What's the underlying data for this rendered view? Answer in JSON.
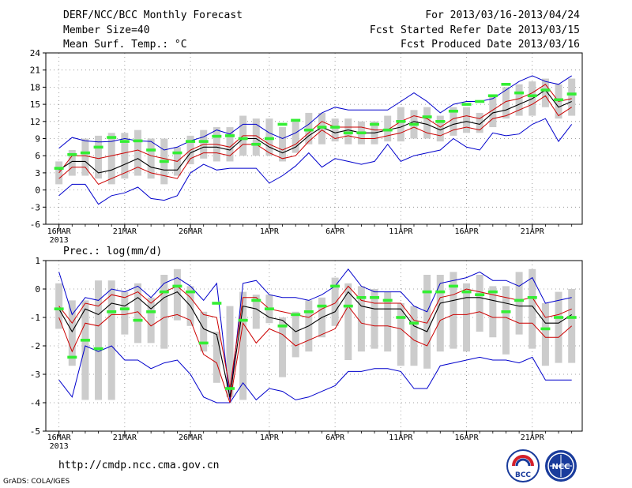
{
  "header": {
    "title": "DERF/NCC/BCC Monthly Forecast",
    "member_size": "Member Size=40",
    "variable": "Mean Surf. Temp.: °C",
    "forecast_period": "For 2013/03/16-2013/04/24",
    "start_date": "Fcst Started Refer Date 2013/03/15",
    "produced_date": "Fcst Produced Date 2013/03/16"
  },
  "footer": {
    "url": "http://cmdp.ncc.cma.gov.cn",
    "credit": "GrADS: COLA/IGES",
    "logos": [
      {
        "name": "bcc-logo",
        "text": "BCC"
      },
      {
        "name": "ncc-logo",
        "text": "NCC"
      }
    ]
  },
  "colors": {
    "max_min": "#0000cc",
    "percentile": "#cc0000",
    "median": "#000000",
    "observed": "#33ee33",
    "box": "#cccccc",
    "grid": "#888888"
  },
  "chart_data": [
    {
      "type": "line",
      "title": "Mean Surf. Temp.: °C",
      "xlabel": "",
      "ylabel": "",
      "x_tick_labels": [
        "16MAR\n2013",
        "21MAR",
        "26MAR",
        "1APR",
        "6APR",
        "11APR",
        "16APR",
        "21APR"
      ],
      "x_tick_days": [
        1,
        6,
        11,
        17,
        22,
        27,
        32,
        37
      ],
      "xlim": [
        0,
        40.8
      ],
      "ylim": [
        -6,
        24
      ],
      "yticks": [
        -6,
        -3,
        0,
        3,
        6,
        9,
        12,
        15,
        18,
        21,
        24
      ],
      "grid": true,
      "days": [
        1,
        2,
        3,
        4,
        5,
        6,
        7,
        8,
        9,
        10,
        11,
        12,
        13,
        14,
        15,
        16,
        17,
        18,
        19,
        20,
        21,
        22,
        23,
        24,
        25,
        26,
        27,
        28,
        29,
        30,
        31,
        32,
        33,
        34,
        35,
        36,
        37,
        38,
        39,
        40
      ],
      "series": [
        {
          "name": "max",
          "values": [
            7.3,
            9.2,
            8.6,
            8.4,
            8.5,
            9.0,
            8.6,
            8.5,
            7.0,
            7.5,
            8.6,
            9.3,
            10.5,
            9.8,
            11.5,
            11.5,
            10.0,
            9.0,
            10.0,
            11.5,
            13.5,
            14.5,
            14.0,
            14.0,
            14.0,
            14.0,
            15.5,
            17.0,
            15.5,
            13.5,
            15.0,
            15.5,
            15.5,
            16.0,
            17.5,
            19.0,
            20.0,
            19.0,
            18.5,
            20.0
          ]
        },
        {
          "name": "p75",
          "values": [
            3.0,
            6.0,
            6.0,
            5.5,
            6.0,
            6.5,
            7.0,
            6.0,
            5.5,
            5.0,
            7.0,
            8.0,
            8.0,
            7.5,
            9.5,
            9.5,
            8.0,
            7.0,
            8.0,
            10.0,
            12.0,
            11.0,
            11.0,
            11.0,
            10.5,
            10.5,
            12.0,
            13.0,
            12.5,
            11.0,
            12.5,
            13.0,
            12.5,
            14.0,
            15.5,
            16.0,
            17.0,
            18.5,
            15.5,
            16.0
          ]
        },
        {
          "name": "median",
          "values": [
            3.5,
            5.0,
            5.0,
            3.0,
            3.5,
            4.5,
            5.5,
            4.0,
            3.5,
            3.5,
            6.5,
            7.5,
            7.5,
            7.0,
            9.0,
            9.0,
            7.5,
            6.5,
            7.5,
            9.5,
            11.0,
            10.0,
            10.5,
            10.0,
            10.0,
            10.5,
            11.0,
            12.0,
            11.5,
            10.5,
            11.5,
            12.0,
            11.5,
            13.5,
            14.0,
            15.0,
            16.0,
            17.5,
            14.5,
            15.5
          ]
        },
        {
          "name": "p25",
          "values": [
            2.0,
            4.0,
            4.0,
            1.0,
            2.0,
            3.0,
            4.0,
            3.0,
            2.5,
            2.0,
            5.5,
            6.5,
            6.5,
            6.0,
            8.0,
            8.0,
            6.5,
            5.5,
            6.0,
            8.5,
            10.5,
            9.0,
            9.5,
            9.0,
            9.0,
            9.5,
            10.0,
            11.0,
            10.0,
            9.5,
            10.5,
            11.0,
            10.5,
            12.5,
            13.0,
            14.0,
            15.0,
            16.5,
            13.0,
            14.5
          ]
        },
        {
          "name": "min",
          "values": [
            -1.0,
            1.0,
            1.0,
            -2.5,
            -1.0,
            -0.5,
            0.5,
            -1.5,
            -1.8,
            -1.0,
            3.0,
            4.5,
            3.5,
            3.8,
            3.8,
            3.8,
            1.2,
            2.5,
            4.2,
            6.5,
            4.0,
            5.5,
            5.0,
            4.5,
            5.0,
            8.0,
            5.0,
            6.0,
            6.5,
            7.0,
            9.0,
            7.5,
            7.0,
            10.0,
            9.5,
            9.8,
            11.5,
            12.5,
            8.5,
            11.5
          ]
        },
        {
          "name": "observed",
          "values": [
            3.8,
            6.2,
            6.5,
            7.5,
            9.2,
            8.5,
            8.6,
            7.0,
            5.0,
            6.5,
            8.5,
            8.5,
            9.4,
            9.5,
            9.0,
            8.0,
            9.0,
            11.5,
            12.2,
            10.5,
            11.0,
            11.0,
            10.0,
            10.0,
            11.5,
            10.5,
            12.0,
            11.5,
            12.8,
            12.0,
            13.8,
            15.0,
            15.5,
            16.5,
            18.5,
            17.0,
            16.5,
            17.5,
            15.8,
            16.8
          ]
        },
        {
          "name": "box_top",
          "values": [
            5.0,
            7.0,
            9.0,
            9.5,
            10.0,
            10.0,
            10.5,
            9.0,
            9.0,
            7.5,
            9.5,
            10.5,
            11.0,
            11.0,
            13.0,
            12.5,
            12.5,
            11.0,
            12.0,
            13.5,
            13.5,
            12.5,
            12.5,
            12.0,
            12.0,
            13.0,
            14.5,
            14.0,
            14.5,
            13.0,
            14.5,
            14.5,
            13.5,
            16.5,
            18.0,
            18.5,
            19.0,
            19.5,
            18.5,
            19.5
          ]
        },
        {
          "name": "box_bottom",
          "values": [
            1.0,
            2.5,
            2.5,
            2.0,
            1.0,
            2.0,
            2.5,
            2.0,
            1.0,
            2.5,
            4.5,
            5.5,
            5.0,
            5.0,
            6.0,
            6.0,
            6.0,
            5.0,
            6.5,
            8.0,
            8.0,
            8.5,
            8.0,
            8.0,
            8.0,
            8.5,
            8.5,
            9.0,
            9.0,
            8.5,
            9.5,
            10.0,
            10.0,
            11.0,
            12.5,
            13.0,
            13.0,
            14.5,
            12.5,
            13.0
          ]
        }
      ]
    },
    {
      "type": "line",
      "title": "Prec.: log(mm/d)",
      "xlabel": "",
      "ylabel": "",
      "x_tick_labels": [
        "16MAR\n2013",
        "21MAR",
        "26MAR",
        "1APR",
        "6APR",
        "11APR",
        "16APR",
        "21APR"
      ],
      "x_tick_days": [
        1,
        6,
        11,
        17,
        22,
        27,
        32,
        37
      ],
      "xlim": [
        0,
        40.8
      ],
      "ylim": [
        -5,
        1
      ],
      "yticks": [
        -5,
        -4,
        -3,
        -2,
        -1,
        0,
        1
      ],
      "grid": true,
      "days": [
        1,
        2,
        3,
        4,
        5,
        6,
        7,
        8,
        9,
        10,
        11,
        12,
        13,
        14,
        15,
        16,
        17,
        18,
        19,
        20,
        21,
        22,
        23,
        24,
        25,
        26,
        27,
        28,
        29,
        30,
        31,
        32,
        33,
        34,
        35,
        36,
        37,
        38,
        39,
        40
      ],
      "series": [
        {
          "name": "max",
          "values": [
            0.6,
            -0.9,
            -0.3,
            -0.4,
            0.0,
            -0.1,
            0.1,
            -0.3,
            0.2,
            0.4,
            0.1,
            -0.4,
            0.2,
            -3.9,
            0.2,
            0.3,
            -0.2,
            -0.3,
            -0.3,
            -0.4,
            -0.2,
            0.1,
            0.7,
            0.1,
            -0.1,
            -0.1,
            -0.1,
            -0.6,
            -0.8,
            0.2,
            0.3,
            0.4,
            0.6,
            0.3,
            0.3,
            0.1,
            0.4,
            -0.5,
            -0.4,
            -0.3
          ]
        },
        {
          "name": "p75",
          "values": [
            -0.6,
            -1.2,
            -0.5,
            -0.6,
            -0.2,
            -0.3,
            -0.1,
            -0.5,
            -0.1,
            0.1,
            -0.3,
            -0.9,
            -1.0,
            -3.5,
            -0.3,
            -0.3,
            -0.7,
            -0.8,
            -0.9,
            -1.0,
            -0.7,
            -0.5,
            0.1,
            -0.4,
            -0.5,
            -0.5,
            -0.5,
            -1.1,
            -1.2,
            -0.3,
            -0.2,
            0.0,
            -0.1,
            -0.2,
            -0.3,
            -0.4,
            -0.3,
            -1.0,
            -0.9,
            -0.7
          ]
        },
        {
          "name": "median",
          "values": [
            -0.7,
            -1.5,
            -0.7,
            -0.9,
            -0.5,
            -0.6,
            -0.3,
            -0.7,
            -0.3,
            -0.1,
            -0.6,
            -1.4,
            -1.6,
            -3.8,
            -0.6,
            -0.7,
            -1.0,
            -1.1,
            -1.5,
            -1.3,
            -1.0,
            -0.8,
            -0.1,
            -0.6,
            -0.7,
            -0.7,
            -0.7,
            -1.3,
            -1.5,
            -0.5,
            -0.4,
            -0.3,
            -0.3,
            -0.4,
            -0.5,
            -0.6,
            -0.6,
            -1.2,
            -1.2,
            -0.9
          ]
        },
        {
          "name": "p25",
          "values": [
            -1.0,
            -2.2,
            -1.2,
            -1.3,
            -0.9,
            -0.9,
            -0.8,
            -1.3,
            -1.0,
            -0.9,
            -1.1,
            -2.3,
            -2.6,
            -4.0,
            -1.2,
            -1.9,
            -1.4,
            -1.6,
            -2.0,
            -1.8,
            -1.6,
            -1.4,
            -0.6,
            -1.2,
            -1.3,
            -1.3,
            -1.4,
            -1.8,
            -2.0,
            -1.1,
            -0.9,
            -0.9,
            -0.8,
            -1.0,
            -1.0,
            -1.2,
            -1.2,
            -1.7,
            -1.7,
            -1.3
          ]
        },
        {
          "name": "min",
          "values": [
            -3.2,
            -3.8,
            -2.0,
            -2.2,
            -2.0,
            -2.5,
            -2.5,
            -2.8,
            -2.6,
            -2.5,
            -3.0,
            -3.8,
            -4.0,
            -4.0,
            -3.3,
            -3.9,
            -3.5,
            -3.6,
            -3.9,
            -3.8,
            -3.6,
            -3.4,
            -2.9,
            -2.9,
            -2.8,
            -2.8,
            -2.9,
            -3.5,
            -3.5,
            -2.7,
            -2.6,
            -2.5,
            -2.4,
            -2.5,
            -2.5,
            -2.6,
            -2.4,
            -3.2,
            -3.2,
            -3.2
          ]
        },
        {
          "name": "observed",
          "values": [
            -0.7,
            -2.4,
            -1.8,
            -2.1,
            -0.8,
            -0.7,
            -1.1,
            -0.8,
            -0.1,
            0.1,
            -0.1,
            -1.9,
            -0.5,
            -3.5,
            -1.1,
            -0.4,
            -0.7,
            -1.3,
            -0.9,
            -0.8,
            -0.6,
            0.1,
            -0.6,
            -0.3,
            -0.3,
            -0.4,
            -1.0,
            -1.2,
            -0.1,
            -0.1,
            0.1,
            -0.1,
            -0.2,
            -0.1,
            -0.8,
            -0.4,
            -0.3,
            -1.4,
            -1.0,
            -1.0
          ]
        },
        {
          "name": "box_top",
          "values": [
            0.2,
            -0.4,
            -0.4,
            0.3,
            0.3,
            -0.1,
            0.2,
            -0.3,
            0.5,
            0.7,
            0.1,
            -0.8,
            -1.5,
            -0.6,
            -0.1,
            -0.2,
            -0.2,
            -1.0,
            -0.8,
            -0.4,
            -0.3,
            0.4,
            0.2,
            0.1,
            0.0,
            -0.1,
            -0.5,
            -0.6,
            0.5,
            0.5,
            0.6,
            0.2,
            0.5,
            0.1,
            0.1,
            0.6,
            0.7,
            -0.5,
            -0.1,
            0.0
          ]
        },
        {
          "name": "box_bottom",
          "values": [
            -1.4,
            -2.7,
            -3.9,
            -3.9,
            -3.9,
            -1.6,
            -1.9,
            -1.9,
            -2.1,
            -1.1,
            -1.3,
            -2.2,
            -3.3,
            -3.8,
            -3.9,
            -1.4,
            -1.2,
            -3.1,
            -2.4,
            -2.2,
            -1.7,
            -1.3,
            -2.5,
            -2.2,
            -2.1,
            -2.2,
            -2.7,
            -2.7,
            -2.8,
            -2.2,
            -2.1,
            -2.2,
            -1.5,
            -1.7,
            -2.3,
            -1.6,
            -2.1,
            -2.7,
            -2.6,
            -2.6
          ]
        }
      ]
    }
  ]
}
